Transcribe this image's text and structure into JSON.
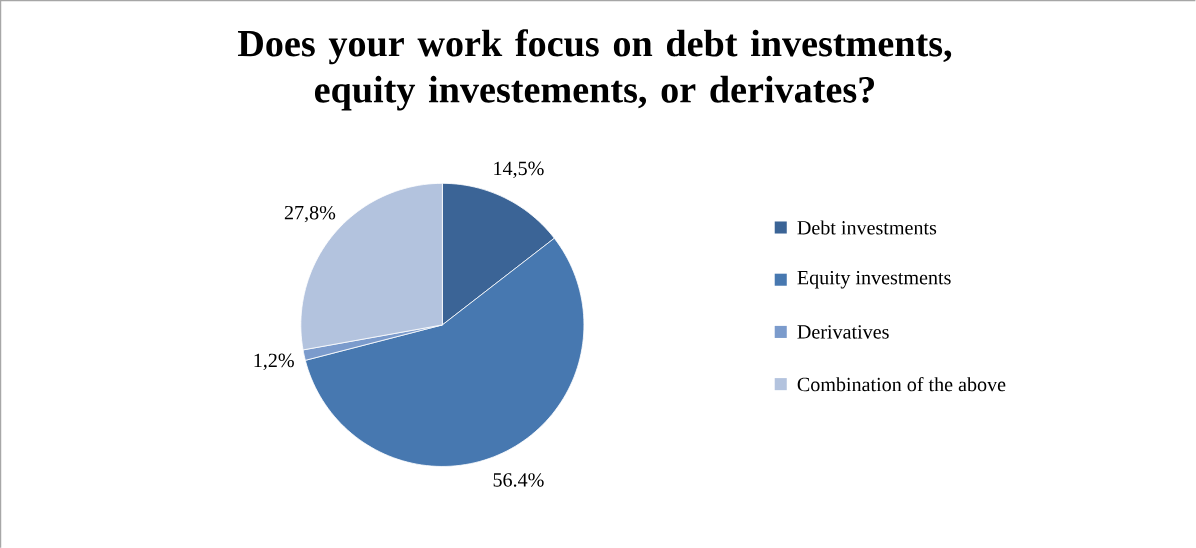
{
  "chart_data": {
    "type": "pie",
    "title": "Does your work focus on debt investments, equity investements, or derivates?",
    "categories": [
      "Debt investments",
      "Equity investments",
      "Derivatives",
      "Combination of the above"
    ],
    "values": [
      14.5,
      56.4,
      1.2,
      27.8
    ],
    "value_labels": [
      "14,5%",
      "56.4%",
      "1,2%",
      "27,8%"
    ],
    "colors": [
      "#3b6496",
      "#4778b0",
      "#7b9bcc",
      "#b3c3de"
    ],
    "legend": "right"
  }
}
